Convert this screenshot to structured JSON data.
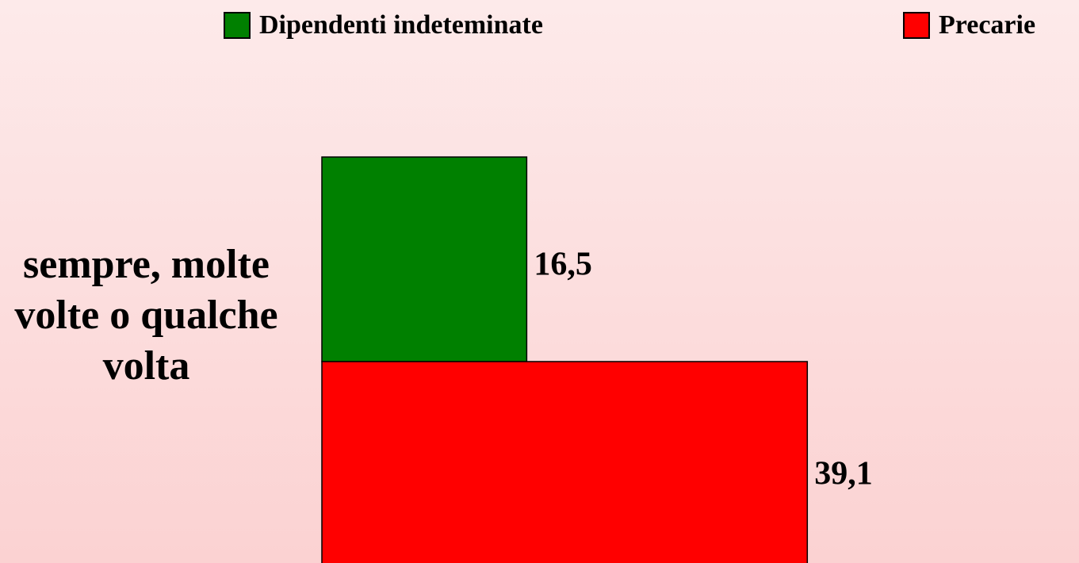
{
  "chart_data": {
    "type": "hbar",
    "categories": [
      "sempre, molte volte o qualche volta"
    ],
    "series": [
      {
        "name": "Dipendenti indeteminate",
        "color": "#008000",
        "values": [
          16.5
        ],
        "value_labels": [
          "16,5"
        ]
      },
      {
        "name": "Precarie",
        "color": "#ff0000",
        "values": [
          39.1
        ],
        "value_labels": [
          "39,1"
        ]
      }
    ],
    "legend": "top"
  }
}
